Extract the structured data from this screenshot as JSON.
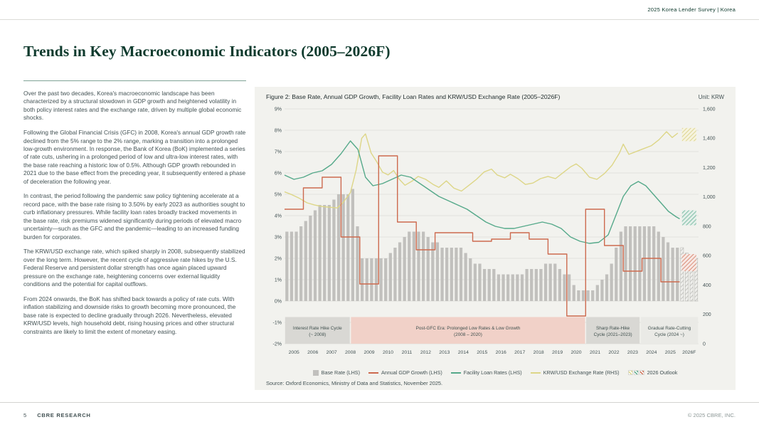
{
  "header": {
    "right": "2025 Korea Lender Survey |  Korea"
  },
  "title": "Trends in Key Macroeconomic Indicators (2005–2026F)",
  "article": {
    "paragraphs": [
      "Over the past two decades, Korea's macroeconomic landscape has been characterized by a structural slowdown in GDP growth and heightened volatility in both policy interest rates and the exchange rate, driven by multiple global economic shocks.",
      "Following the Global Financial Crisis (GFC) in 2008, Korea's annual GDP growth rate declined from the 5% range to the 2% range, marking a transition into a prolonged low-growth environment. In response, the Bank of Korea (BoK) implemented a series of rate cuts, ushering in a prolonged period of low and ultra-low interest rates, with the base rate reaching a historic low of 0.5%. Although GDP growth rebounded in 2021 due to the base effect from the preceding year, it subsequently entered a phase of deceleration the following year.",
      "In contrast, the period following the pandemic saw policy tightening accelerate at a record pace, with the base rate rising to 3.50% by early 2023 as authorities sought to curb inflationary pressures. While facility loan rates broadly tracked movements in the base rate, risk premiums widened significantly during periods of elevated macro uncertainty—such as the GFC and the pandemic—leading to an increased funding burden for corporates.",
      "The KRW/USD exchange rate, which spiked sharply in 2008, subsequently stabilized over the long term. However, the recent cycle of aggressive rate hikes by the U.S. Federal Reserve and persistent dollar strength has once again placed upward pressure on the exchange rate, heightening concerns over external liquidity conditions and the potential for capital outflows.",
      "From 2024 onwards, the BoK has shifted back towards a policy of rate cuts. With inflation stabilizing and downside risks to growth becoming more pronounced, the base rate is expected to decline gradually through 2026. Nevertheless, elevated KRW/USD levels, high household debt, rising housing prices and other structural constraints are likely to limit the extent of monetary easing.",
      ""
    ]
  },
  "figure": {
    "title": "Figure 2: Base Rate, Annual GDP Growth, Facility Loan Rates and KRW/USD Exchange Rate (2005–2026F)",
    "unit": "Unit: KRW",
    "source": "Source: Oxford Economics, Ministry of Data and Statistics, November 2025."
  },
  "footer": {
    "page_number": "5",
    "brand": "CBRE RESEARCH",
    "copyright": "© 2025 CBRE, INC."
  },
  "chart_data": {
    "type": "combo-bar-line",
    "left_axis": {
      "min": -2,
      "max": 9,
      "ticks": [
        "9%",
        "8%",
        "7%",
        "6%",
        "5%",
        "4%",
        "3%",
        "2%",
        "1%",
        "0%",
        "-1%",
        "-2%"
      ],
      "grid": true
    },
    "right_axis": {
      "min": 0,
      "max": 1600,
      "ticks": [
        "1,600",
        "1,400",
        "1,200",
        "1,000",
        "800",
        "600",
        "400",
        "200",
        "0"
      ]
    },
    "years": [
      "2005",
      "2006",
      "2007",
      "2008",
      "2009",
      "2010",
      "2011",
      "2012",
      "2013",
      "2014",
      "2015",
      "2016",
      "2017",
      "2018",
      "2019",
      "2020",
      "2021",
      "2022",
      "2023",
      "2024",
      "2025",
      "2026F"
    ],
    "series": {
      "base_rate": {
        "name": "Base Rate (LHS)",
        "type": "bar",
        "axis": "left",
        "color": "#c1c0bd",
        "frequency": "quarterly",
        "values": [
          3.25,
          3.25,
          3.25,
          3.5,
          3.75,
          4.0,
          4.25,
          4.5,
          4.5,
          4.5,
          4.75,
          5.0,
          5.0,
          5.0,
          5.25,
          3.5,
          2.0,
          2.0,
          2.0,
          2.0,
          2.0,
          2.0,
          2.25,
          2.5,
          2.75,
          3.0,
          3.25,
          3.25,
          3.25,
          3.25,
          3.0,
          2.75,
          2.75,
          2.5,
          2.5,
          2.5,
          2.5,
          2.5,
          2.25,
          2.0,
          1.75,
          1.75,
          1.5,
          1.5,
          1.5,
          1.25,
          1.25,
          1.25,
          1.25,
          1.25,
          1.25,
          1.5,
          1.5,
          1.5,
          1.5,
          1.75,
          1.75,
          1.75,
          1.5,
          1.25,
          1.25,
          0.75,
          0.5,
          0.5,
          0.5,
          0.5,
          0.75,
          1.0,
          1.25,
          1.75,
          2.5,
          3.25,
          3.5,
          3.5,
          3.5,
          3.5,
          3.5,
          3.5,
          3.5,
          3.25,
          3.0,
          2.75,
          2.5,
          2.5,
          2.5,
          2.25,
          2.0,
          2.0
        ]
      },
      "gdp": {
        "name": "Annual GDP Growth (LHS)",
        "type": "step-line",
        "axis": "left",
        "color": "#cd6a4f",
        "values": [
          4.3,
          5.3,
          5.8,
          3.0,
          0.8,
          6.8,
          3.7,
          2.4,
          3.2,
          3.2,
          2.8,
          2.9,
          3.2,
          2.9,
          2.2,
          -0.7,
          4.3,
          2.6,
          1.4,
          2.0,
          0.9
        ]
      },
      "facility": {
        "name": "Facility Loan Rates (LHS)",
        "type": "line",
        "axis": "left",
        "color": "#55a98a",
        "points": [
          [
            0,
            5.9
          ],
          [
            0.5,
            5.7
          ],
          [
            1,
            5.8
          ],
          [
            1.5,
            6.0
          ],
          [
            2,
            6.1
          ],
          [
            2.5,
            6.4
          ],
          [
            3,
            6.9
          ],
          [
            3.5,
            7.5
          ],
          [
            3.9,
            7.1
          ],
          [
            4.3,
            5.8
          ],
          [
            4.7,
            5.4
          ],
          [
            5.2,
            5.5
          ],
          [
            5.7,
            5.7
          ],
          [
            6.2,
            5.9
          ],
          [
            6.7,
            5.8
          ],
          [
            7.2,
            5.5
          ],
          [
            7.7,
            5.2
          ],
          [
            8.2,
            4.9
          ],
          [
            8.7,
            4.7
          ],
          [
            9.2,
            4.5
          ],
          [
            9.7,
            4.3
          ],
          [
            10.2,
            4.0
          ],
          [
            10.7,
            3.7
          ],
          [
            11.2,
            3.5
          ],
          [
            11.7,
            3.4
          ],
          [
            12.2,
            3.4
          ],
          [
            12.7,
            3.5
          ],
          [
            13.2,
            3.6
          ],
          [
            13.7,
            3.7
          ],
          [
            14.2,
            3.6
          ],
          [
            14.7,
            3.4
          ],
          [
            15.2,
            3.0
          ],
          [
            15.7,
            2.8
          ],
          [
            16.2,
            2.7
          ],
          [
            16.7,
            2.75
          ],
          [
            17.2,
            3.1
          ],
          [
            17.6,
            4.0
          ],
          [
            18,
            4.9
          ],
          [
            18.4,
            5.4
          ],
          [
            18.8,
            5.6
          ],
          [
            19.2,
            5.4
          ],
          [
            19.6,
            5.0
          ],
          [
            20,
            4.6
          ],
          [
            20.4,
            4.2
          ],
          [
            20.8,
            3.95
          ],
          [
            21,
            3.85
          ]
        ]
      },
      "krw": {
        "name": "KRW/USD Exchange Rate (RHS)",
        "type": "line",
        "axis": "right",
        "color": "#ddd687",
        "points": [
          [
            0,
            1035
          ],
          [
            0.4,
            1015
          ],
          [
            0.8,
            990
          ],
          [
            1.2,
            960
          ],
          [
            1.6,
            945
          ],
          [
            2,
            935
          ],
          [
            2.4,
            930
          ],
          [
            2.8,
            925
          ],
          [
            3.1,
            960
          ],
          [
            3.5,
            1030
          ],
          [
            3.8,
            1180
          ],
          [
            4.1,
            1400
          ],
          [
            4.3,
            1430
          ],
          [
            4.6,
            1300
          ],
          [
            4.9,
            1240
          ],
          [
            5.2,
            1170
          ],
          [
            5.5,
            1150
          ],
          [
            5.8,
            1180
          ],
          [
            6.1,
            1120
          ],
          [
            6.4,
            1080
          ],
          [
            6.8,
            1110
          ],
          [
            7.1,
            1140
          ],
          [
            7.5,
            1120
          ],
          [
            7.9,
            1085
          ],
          [
            8.2,
            1065
          ],
          [
            8.6,
            1110
          ],
          [
            9,
            1060
          ],
          [
            9.4,
            1040
          ],
          [
            9.8,
            1080
          ],
          [
            10.2,
            1120
          ],
          [
            10.6,
            1170
          ],
          [
            11,
            1190
          ],
          [
            11.3,
            1150
          ],
          [
            11.7,
            1130
          ],
          [
            12,
            1155
          ],
          [
            12.4,
            1125
          ],
          [
            12.8,
            1085
          ],
          [
            13.2,
            1095
          ],
          [
            13.6,
            1125
          ],
          [
            14,
            1140
          ],
          [
            14.4,
            1125
          ],
          [
            14.8,
            1165
          ],
          [
            15.2,
            1205
          ],
          [
            15.5,
            1225
          ],
          [
            15.8,
            1195
          ],
          [
            16.2,
            1135
          ],
          [
            16.6,
            1120
          ],
          [
            17,
            1160
          ],
          [
            17.4,
            1215
          ],
          [
            17.8,
            1300
          ],
          [
            18,
            1360
          ],
          [
            18.3,
            1290
          ],
          [
            18.7,
            1310
          ],
          [
            19.1,
            1330
          ],
          [
            19.5,
            1350
          ],
          [
            19.9,
            1390
          ],
          [
            20.3,
            1445
          ],
          [
            20.6,
            1405
          ],
          [
            20.9,
            1435
          ]
        ]
      }
    },
    "outlook_2026": {
      "label": "2026 Outlook",
      "gdp_range": [
        1.4,
        2.2
      ],
      "facility_range": [
        3.55,
        4.25
      ],
      "krw_range": [
        1380,
        1470
      ]
    },
    "annotations": [
      {
        "line1": "Interest Rate Hike Cycle",
        "line2": "(~ 2008)",
        "x0": 0,
        "x1": 3.5,
        "color": "#d9d8d4"
      },
      {
        "line1": "Post-GFC Era: Prolonged Low Rates & Low Growth",
        "line2": "(2008 – 2020)",
        "x0": 3.5,
        "x1": 16,
        "color": "#f1d1c8"
      },
      {
        "line1": "Sharp Rate-Hike",
        "line2": "Cycle (2021–2023)",
        "x0": 16,
        "x1": 18.9,
        "color": "#d9d8d4"
      },
      {
        "line1": "Gradual Rate-Cutting",
        "line2": "Cycle (2024 ~)",
        "x0": 18.9,
        "x1": 22,
        "color": "#eaeae6"
      }
    ],
    "legend": [
      {
        "type": "bar",
        "color": "#c1c0bd",
        "label": "Base Rate (LHS)"
      },
      {
        "type": "line",
        "color": "#cd6a4f",
        "label": "Annual GDP Growth (LHS)"
      },
      {
        "type": "line",
        "color": "#55a98a",
        "label": "Facility Loan Rates (LHS)"
      },
      {
        "type": "line",
        "color": "#ddd687",
        "label": "KRW/USD Exchange Rate (RHS)"
      },
      {
        "type": "hatch",
        "colors": [
          "#ddd687",
          "#55a98a",
          "#cd6a4f"
        ],
        "label": "2026 Outlook"
      }
    ]
  }
}
